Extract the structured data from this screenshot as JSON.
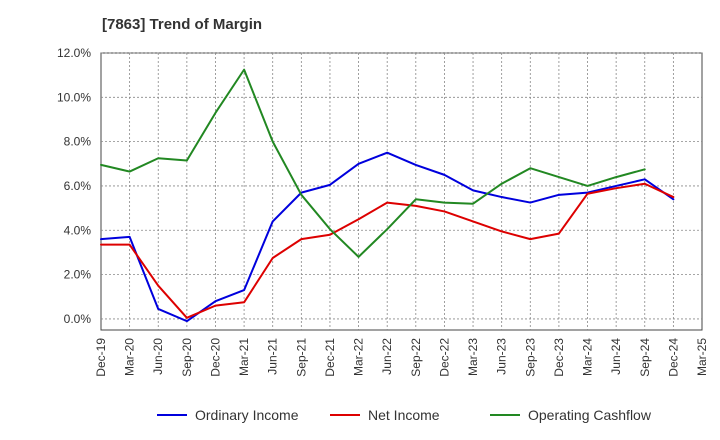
{
  "chart_data": {
    "type": "line",
    "title": "[7863]  Trend of Margin",
    "xlabel": "",
    "ylabel": "",
    "ylim": [
      -0.5,
      12.0
    ],
    "y_ticks": [
      "0.0%",
      "2.0%",
      "4.0%",
      "6.0%",
      "8.0%",
      "10.0%",
      "12.0%"
    ],
    "categories": [
      "Dec-19",
      "Mar-20",
      "Jun-20",
      "Sep-20",
      "Dec-20",
      "Mar-21",
      "Jun-21",
      "Sep-21",
      "Dec-21",
      "Mar-22",
      "Jun-22",
      "Sep-22",
      "Dec-22",
      "Mar-23",
      "Jun-23",
      "Sep-23",
      "Dec-23",
      "Mar-24",
      "Jun-24",
      "Sep-24",
      "Dec-24",
      "Mar-25"
    ],
    "grid": true,
    "legend_position": "bottom",
    "series": [
      {
        "name": "Ordinary Income",
        "color": "#0000dd",
        "values": [
          3.6,
          3.7,
          0.45,
          -0.1,
          0.8,
          1.3,
          4.4,
          5.7,
          6.05,
          7.0,
          7.5,
          6.95,
          6.5,
          5.8,
          5.5,
          5.25,
          5.6,
          5.7,
          6.0,
          6.3,
          5.4,
          null
        ]
      },
      {
        "name": "Net Income",
        "color": "#dd0000",
        "values": [
          3.35,
          3.35,
          1.5,
          0.05,
          0.6,
          0.75,
          2.75,
          3.6,
          3.8,
          4.5,
          5.25,
          5.1,
          4.85,
          4.4,
          3.95,
          3.6,
          3.85,
          5.65,
          5.9,
          6.1,
          5.5,
          null
        ]
      },
      {
        "name": "Operating Cashflow",
        "color": "#228822",
        "values": [
          6.95,
          6.65,
          7.25,
          7.15,
          9.3,
          11.25,
          8.0,
          5.6,
          4.05,
          2.8,
          4.05,
          5.4,
          5.25,
          5.2,
          6.1,
          6.8,
          6.4,
          6.0,
          6.4,
          6.75,
          null,
          null
        ]
      }
    ]
  }
}
